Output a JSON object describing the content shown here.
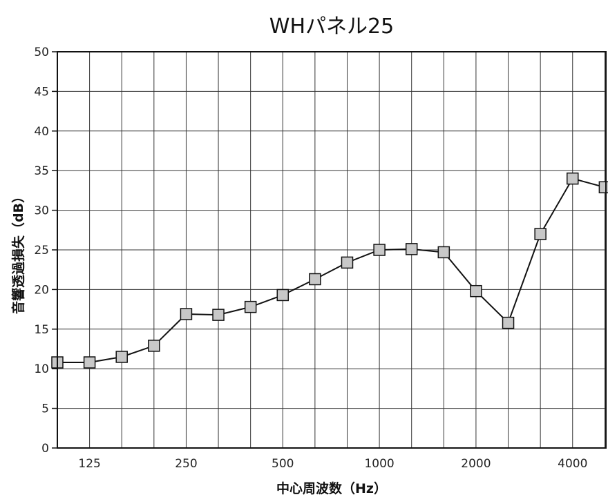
{
  "chart_data": {
    "type": "line",
    "title": "WHパネル25",
    "xlabel": "中心周波数（Hz）",
    "ylabel": "音響透過損失（dB）",
    "ylim": [
      0,
      50
    ],
    "yticks": [
      0,
      5,
      10,
      15,
      20,
      25,
      30,
      35,
      40,
      45,
      50
    ],
    "grid": true,
    "x": [
      "100",
      "125",
      "160",
      "200",
      "250",
      "315",
      "400",
      "500",
      "630",
      "800",
      "1000",
      "1250",
      "1600",
      "2000",
      "2500",
      "3150",
      "4000",
      "5000"
    ],
    "x_tick_labels": [
      "",
      "125",
      "",
      "",
      "250",
      "",
      "",
      "500",
      "",
      "",
      "1000",
      "",
      "",
      "2000",
      "",
      "",
      "4000",
      ""
    ],
    "series": [
      {
        "values": [
          10.8,
          10.8,
          11.5,
          12.9,
          16.9,
          16.8,
          17.8,
          19.3,
          21.3,
          23.4,
          25.0,
          25.1,
          24.7,
          19.8,
          15.8,
          27.0,
          34.0,
          32.9
        ]
      }
    ],
    "colors": {
      "marker_fill": "#c8c8c8",
      "marker_stroke": "#111111",
      "line": "#111111",
      "grid": "#333333"
    }
  }
}
